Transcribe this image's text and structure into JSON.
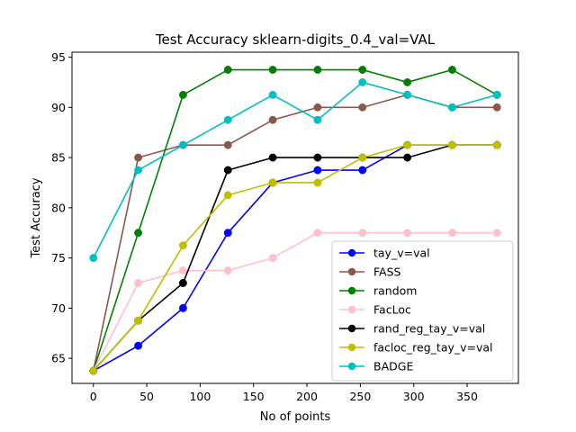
{
  "chart_data": {
    "type": "line",
    "title": "Test Accuracy sklearn-digits_0.4_val=VAL",
    "xlabel": "No of points",
    "ylabel": "Test Accuracy",
    "xlim": [
      -20,
      398
    ],
    "ylim": [
      62.5,
      95.5
    ],
    "xticks": [
      0,
      50,
      100,
      150,
      200,
      250,
      300,
      350
    ],
    "yticks": [
      65,
      70,
      75,
      80,
      85,
      90,
      95
    ],
    "grid": false,
    "legend_position": "lower-right",
    "x": [
      0,
      42,
      84,
      126,
      168,
      210,
      252,
      294,
      336,
      378
    ],
    "series": [
      {
        "name": "tay_v=val",
        "color": "#0000ff",
        "values": [
          63.75,
          66.25,
          70.0,
          77.5,
          82.5,
          83.75,
          83.75,
          86.25,
          86.25,
          86.25
        ]
      },
      {
        "name": "FASS",
        "color": "#8c564b",
        "values": [
          63.75,
          85.0,
          86.25,
          86.25,
          88.75,
          90.0,
          90.0,
          91.25,
          90.0,
          90.0
        ]
      },
      {
        "name": "random",
        "color": "#008000",
        "values": [
          63.75,
          77.5,
          91.25,
          93.75,
          93.75,
          93.75,
          93.75,
          92.5,
          93.75,
          91.25
        ]
      },
      {
        "name": "FacLoc",
        "color": "#ffc0cb",
        "values": [
          63.75,
          72.5,
          73.75,
          73.75,
          75.0,
          77.5,
          77.5,
          77.5,
          77.5,
          77.5
        ]
      },
      {
        "name": "rand_reg_tay_v=val",
        "color": "#000000",
        "values": [
          63.75,
          68.75,
          72.5,
          83.75,
          85.0,
          85.0,
          85.0,
          85.0,
          86.25,
          86.25
        ]
      },
      {
        "name": "facloc_reg_tay_v=val",
        "color": "#bfbf00",
        "values": [
          63.75,
          68.75,
          76.25,
          81.25,
          82.5,
          82.5,
          85.0,
          86.25,
          86.25,
          86.25
        ]
      },
      {
        "name": "BADGE",
        "color": "#00bfbf",
        "values": [
          75.0,
          83.75,
          86.25,
          88.75,
          91.25,
          88.75,
          92.5,
          91.25,
          90.0,
          91.25
        ]
      }
    ]
  }
}
